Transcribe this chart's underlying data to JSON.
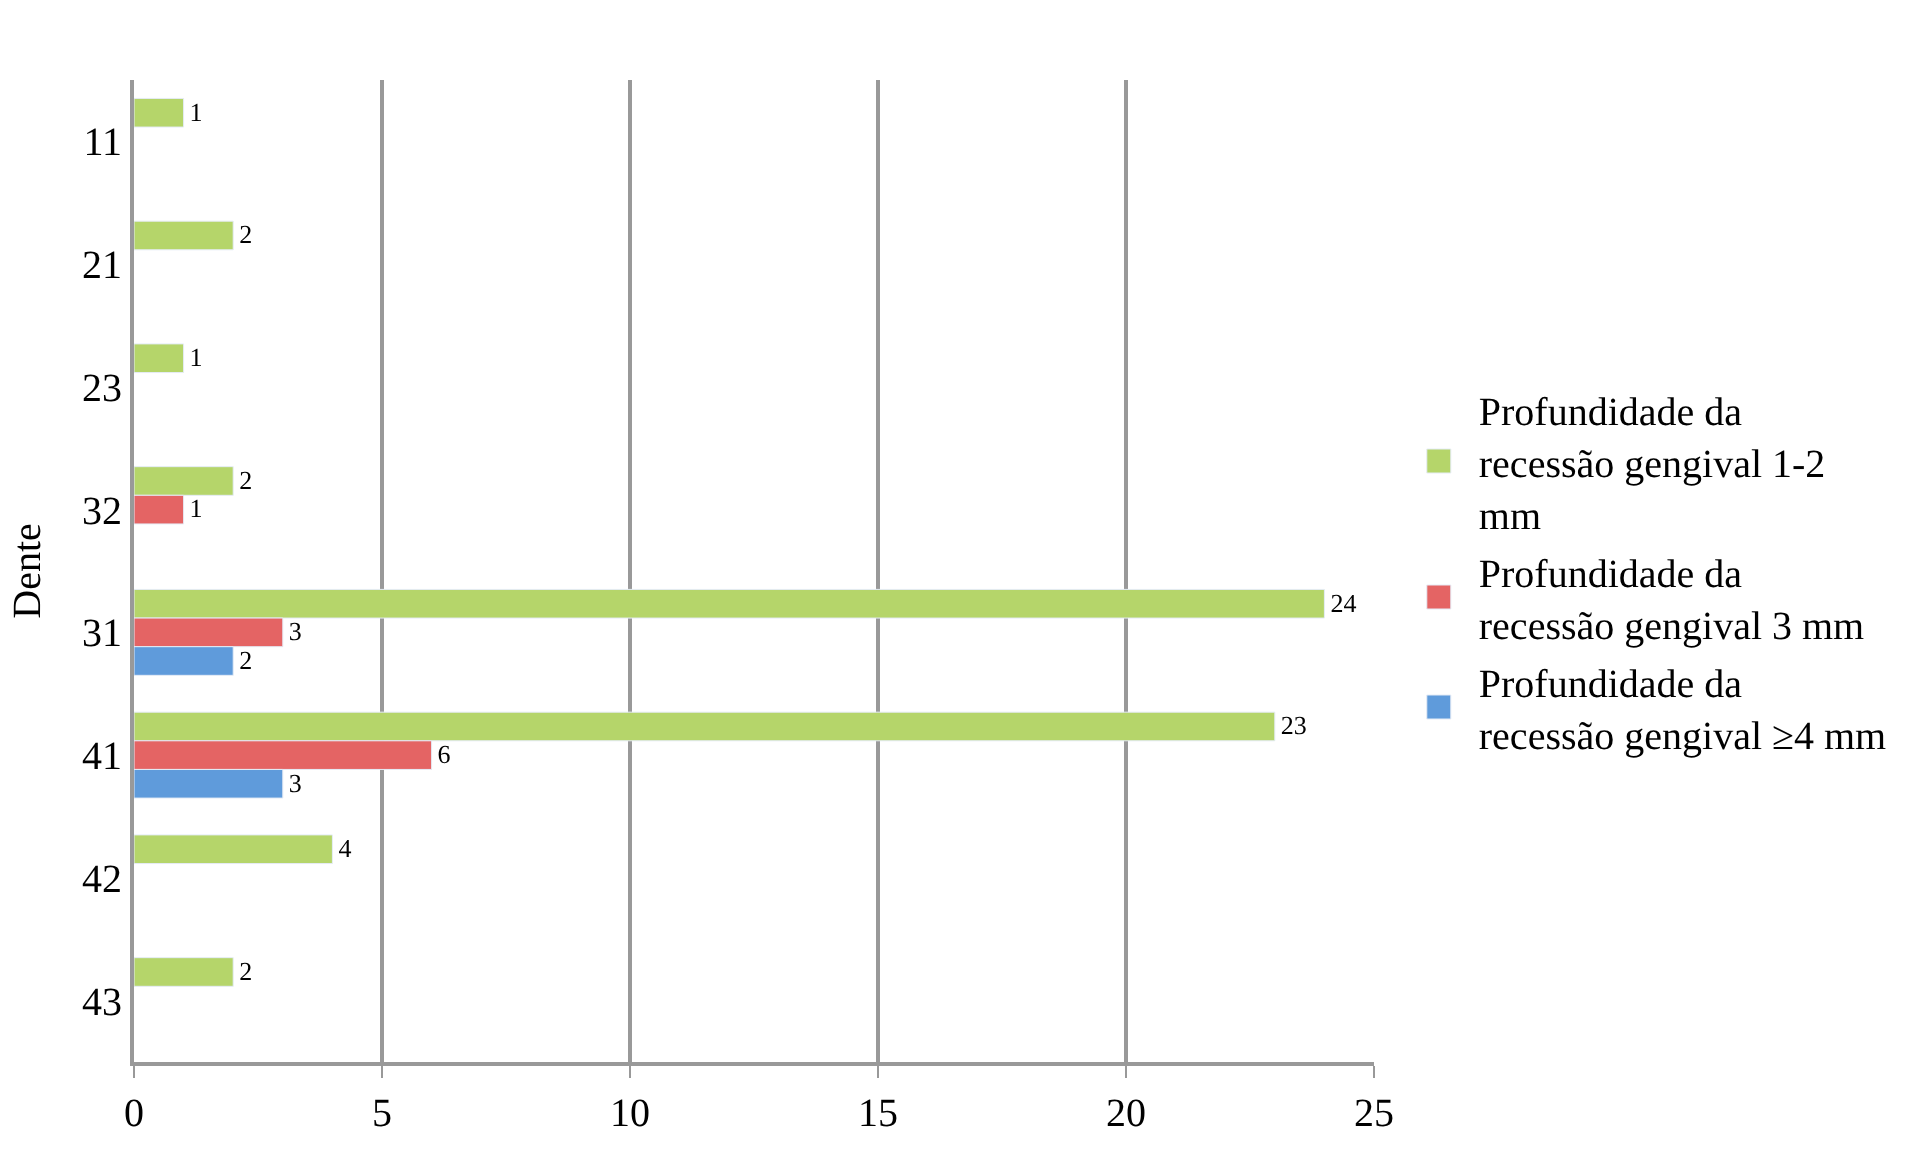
{
  "chart_data": {
    "type": "bar",
    "orientation": "horizontal",
    "ylabel": "Dente",
    "categories": [
      "11",
      "21",
      "23",
      "32",
      "31",
      "41",
      "42",
      "43"
    ],
    "series": [
      {
        "name": "Profundidade da recessão gengival 1-2 mm",
        "color": "#b5d56a",
        "values": [
          1,
          2,
          1,
          2,
          24,
          23,
          4,
          2
        ]
      },
      {
        "name": "Profundidade da recessão gengival 3 mm",
        "color": "#e46464",
        "values": [
          null,
          null,
          null,
          1,
          3,
          6,
          null,
          null
        ]
      },
      {
        "name": "Profundidade da recessão gengival ≥4 mm",
        "color": "#5f9bdb",
        "values": [
          null,
          null,
          null,
          null,
          2,
          3,
          null,
          null
        ]
      }
    ],
    "xlim": [
      0,
      25
    ],
    "xticks": [
      0,
      5,
      10,
      15,
      20,
      25
    ],
    "grid": "x",
    "legend": "right",
    "data_labels": true
  }
}
